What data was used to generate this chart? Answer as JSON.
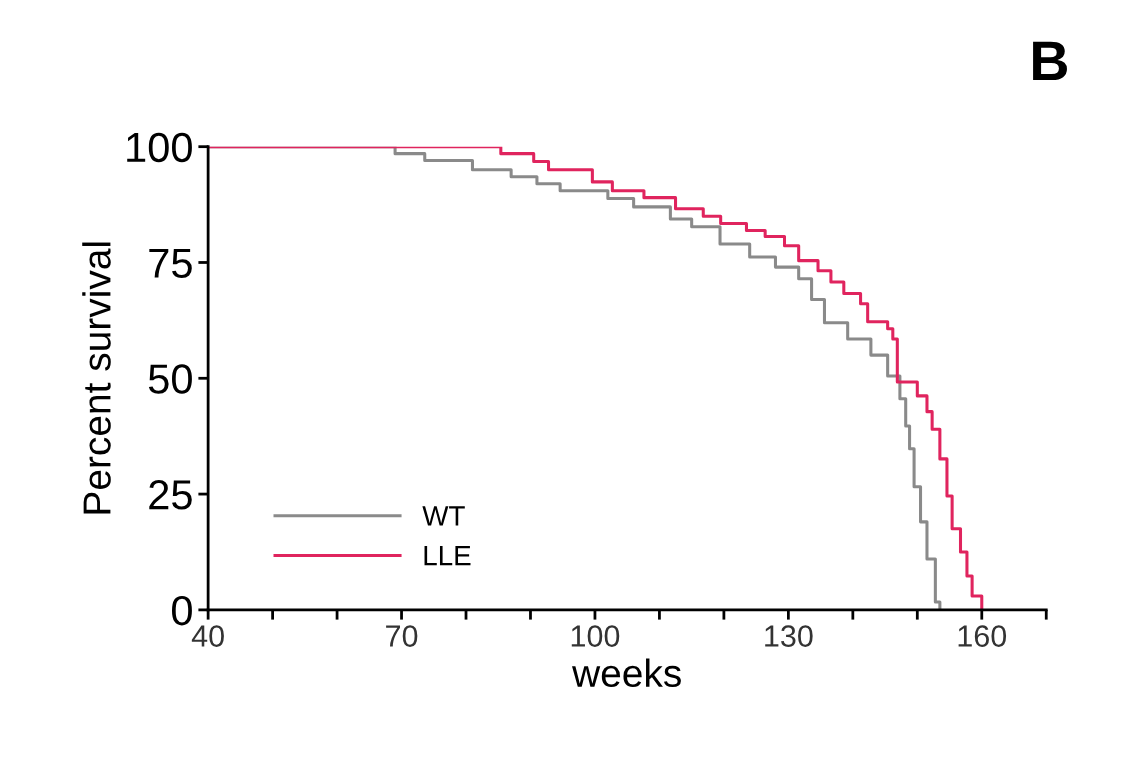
{
  "chart_data": {
    "type": "step",
    "xlabel": "weeks",
    "ylabel": "Percent survival",
    "annotations": [
      "B"
    ],
    "xlim": [
      40,
      170
    ],
    "ylim": [
      0,
      100
    ],
    "xticks": [
      40,
      {
        "value": 50,
        "label": null
      },
      {
        "value": 60,
        "label": null
      },
      70,
      {
        "value": 80,
        "label": null
      },
      {
        "value": 90,
        "label": null
      },
      100,
      {
        "value": 110,
        "label": null
      },
      {
        "value": 120,
        "label": null
      },
      130,
      {
        "value": 140,
        "label": null
      },
      {
        "value": 150,
        "label": null
      },
      160,
      {
        "value": 170,
        "label": null
      }
    ],
    "yticks": [
      0,
      25,
      50,
      75,
      100
    ],
    "grid": false,
    "legend": "bottom left",
    "line_style": "solid",
    "marker": "none",
    "series": [
      {
        "name": "WT",
        "color": "#8a8a8a",
        "x": [
          40,
          69,
          73.6,
          81,
          87,
          91,
          94.6,
          102,
          106,
          111.7,
          115,
          119.4,
          124,
          128,
          131.6,
          133.6,
          135.6,
          139.2,
          142.8,
          145.4,
          147.3,
          148.2,
          148.8,
          149.5,
          150.5,
          151.5,
          152.8,
          153.5
        ],
        "values": [
          100,
          98.5,
          97,
          95,
          93.5,
          92,
          90.5,
          88.8,
          87,
          84.4,
          82.7,
          79,
          76.2,
          74,
          71.5,
          67,
          62,
          58.5,
          55,
          50.5,
          45.6,
          39.7,
          34.8,
          26.6,
          19,
          11,
          1.7,
          0
        ]
      },
      {
        "name": "LLE",
        "color": "#e0245e",
        "x": [
          40,
          85.4,
          90.5,
          92.8,
          99.6,
          102.7,
          107.6,
          112.5,
          116.8,
          119.5,
          123.5,
          126.4,
          129.4,
          131.6,
          134.6,
          136.6,
          138.6,
          141.2,
          142.3,
          145.4,
          146.2,
          146.9,
          150,
          151.5,
          152.3,
          153.5,
          154.6,
          155.4,
          156.7,
          157.7,
          158.5,
          160
        ],
        "values": [
          100,
          98.5,
          96.8,
          95,
          92.4,
          90.5,
          89,
          86.6,
          85,
          83.4,
          81.9,
          80.6,
          78.6,
          75.4,
          73.2,
          70.8,
          68.3,
          66.1,
          62.2,
          60.7,
          58.5,
          49.2,
          46.2,
          42.8,
          39,
          32.6,
          24.6,
          17.5,
          12.5,
          7.3,
          3,
          0
        ]
      }
    ]
  }
}
